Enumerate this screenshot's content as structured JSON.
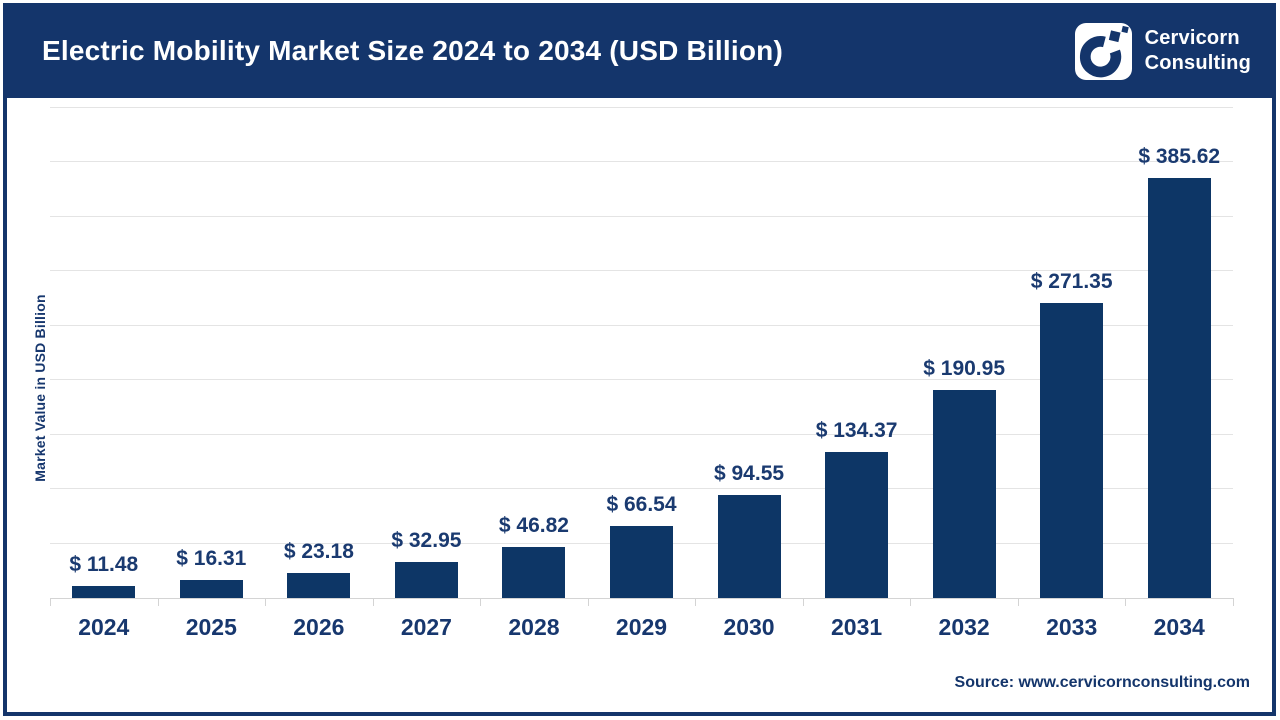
{
  "header": {
    "title": "Electric Mobility Market Size 2024 to 2034 (USD Billion)",
    "background_color": "#14356B",
    "logo": {
      "icon": "cervicorn-c-mark",
      "line1": "Cervicorn",
      "line2": "Consulting"
    }
  },
  "chart_data": {
    "type": "bar",
    "title": "Electric Mobility Market Size 2024 to 2034 (USD Billion)",
    "xlabel": "",
    "ylabel": "Market Value in USD Billion",
    "categories": [
      "2024",
      "2025",
      "2026",
      "2027",
      "2028",
      "2029",
      "2030",
      "2031",
      "2032",
      "2033",
      "2034"
    ],
    "values": [
      11.48,
      16.31,
      23.18,
      32.95,
      46.82,
      66.54,
      94.55,
      134.37,
      190.95,
      271.35,
      385.62
    ],
    "value_labels": [
      "$ 11.48",
      "$ 16.31",
      "$ 23.18",
      "$ 32.95",
      "$ 46.82",
      "$ 66.54",
      "$ 94.55",
      "$ 134.37",
      "$ 190.95",
      "$ 271.35",
      "$ 385.62"
    ],
    "ylim": [
      0,
      450
    ],
    "grid_step": 50,
    "grid": true,
    "legend": false,
    "bar_color": "#0D3666",
    "label_color": "#1A3A70",
    "unit": "USD Billion"
  },
  "footer": {
    "source": "Source: www.cervicornconsulting.com"
  },
  "colors": {
    "navy": "#14356B",
    "bar": "#0D3666",
    "gridline": "#E4E4E4",
    "axis": "#D4D4D4",
    "text_on_navy": "#FFFFFF"
  }
}
